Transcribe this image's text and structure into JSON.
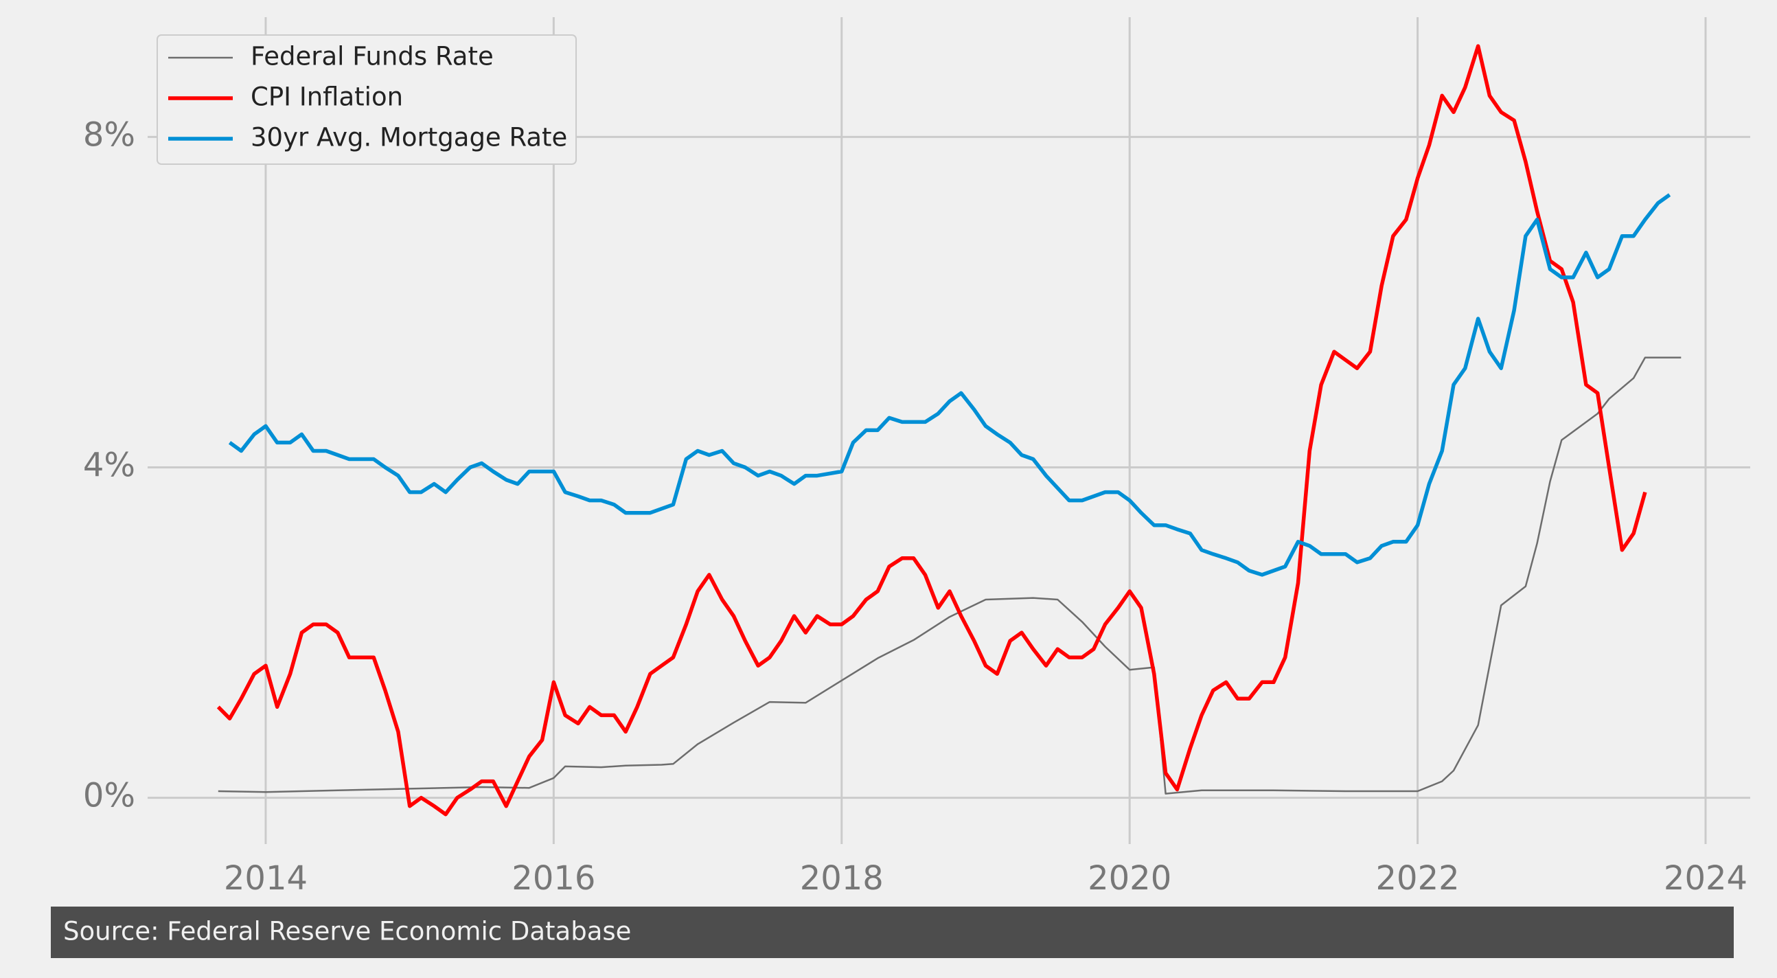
{
  "chart_data": {
    "type": "line",
    "caption": "Source: Federal Reserve Economic Database",
    "xlim": [
      2013.18,
      2024.31
    ],
    "xticks": [
      2014,
      2016,
      2018,
      2020,
      2022,
      2024
    ],
    "ylim": [
      -0.56,
      9.45
    ],
    "yticks": [
      {
        "value": 0,
        "label": "0%"
      },
      {
        "value": 4,
        "label": "4%"
      },
      {
        "value": 8,
        "label": "8%"
      }
    ],
    "grid": true,
    "legend": "upper left",
    "series": [
      {
        "name": "Federal Funds Rate",
        "color": "#6d6d6d",
        "x": [
          2013.67,
          2014.0,
          2014.5,
          2015.0,
          2015.5,
          2015.83,
          2016.0,
          2016.08,
          2016.33,
          2016.5,
          2016.75,
          2016.83,
          2017.0,
          2017.25,
          2017.5,
          2017.75,
          2018.0,
          2018.25,
          2018.5,
          2018.75,
          2019.0,
          2019.33,
          2019.5,
          2019.67,
          2019.83,
          2020.0,
          2020.17,
          2020.25,
          2020.5,
          2021.0,
          2021.5,
          2022.0,
          2022.17,
          2022.25,
          2022.42,
          2022.58,
          2022.75,
          2022.83,
          2022.92,
          2023.0,
          2023.25,
          2023.33,
          2023.5,
          2023.58,
          2023.83
        ],
        "values": [
          0.08,
          0.07,
          0.09,
          0.11,
          0.13,
          0.12,
          0.24,
          0.38,
          0.37,
          0.39,
          0.4,
          0.41,
          0.65,
          0.91,
          1.16,
          1.15,
          1.42,
          1.69,
          1.91,
          2.19,
          2.4,
          2.42,
          2.4,
          2.13,
          1.83,
          1.55,
          1.58,
          0.05,
          0.09,
          0.09,
          0.08,
          0.08,
          0.2,
          0.33,
          0.88,
          2.33,
          2.56,
          3.08,
          3.83,
          4.33,
          4.65,
          4.83,
          5.08,
          5.33,
          5.33
        ]
      },
      {
        "name": "CPI Inflation",
        "color": "#ff0000",
        "x": [
          2013.67,
          2013.75,
          2013.83,
          2013.92,
          2014.0,
          2014.08,
          2014.17,
          2014.25,
          2014.33,
          2014.42,
          2014.5,
          2014.58,
          2014.67,
          2014.75,
          2014.83,
          2014.92,
          2015.0,
          2015.08,
          2015.17,
          2015.25,
          2015.33,
          2015.42,
          2015.5,
          2015.58,
          2015.67,
          2015.75,
          2015.83,
          2015.92,
          2016.0,
          2016.08,
          2016.17,
          2016.25,
          2016.33,
          2016.42,
          2016.5,
          2016.58,
          2016.67,
          2016.75,
          2016.83,
          2016.92,
          2017.0,
          2017.08,
          2017.17,
          2017.25,
          2017.33,
          2017.42,
          2017.5,
          2017.58,
          2017.67,
          2017.75,
          2017.83,
          2017.92,
          2018.0,
          2018.08,
          2018.17,
          2018.25,
          2018.33,
          2018.42,
          2018.5,
          2018.58,
          2018.67,
          2018.75,
          2018.83,
          2018.92,
          2019.0,
          2019.08,
          2019.17,
          2019.25,
          2019.33,
          2019.42,
          2019.5,
          2019.58,
          2019.67,
          2019.75,
          2019.83,
          2019.92,
          2020.0,
          2020.08,
          2020.17,
          2020.25,
          2020.33,
          2020.42,
          2020.5,
          2020.58,
          2020.67,
          2020.75,
          2020.83,
          2020.92,
          2021.0,
          2021.08,
          2021.17,
          2021.25,
          2021.33,
          2021.42,
          2021.5,
          2021.58,
          2021.67,
          2021.75,
          2021.83,
          2021.92,
          2022.0,
          2022.08,
          2022.17,
          2022.25,
          2022.33,
          2022.42,
          2022.5,
          2022.58,
          2022.67,
          2022.75,
          2022.83,
          2022.92,
          2023.0,
          2023.08,
          2023.17,
          2023.25,
          2023.33,
          2023.42,
          2023.5,
          2023.58
        ],
        "values": [
          1.1,
          0.96,
          1.2,
          1.5,
          1.6,
          1.1,
          1.5,
          2.0,
          2.1,
          2.1,
          2.0,
          1.7,
          1.7,
          1.7,
          1.3,
          0.8,
          -0.1,
          0.0,
          -0.1,
          -0.2,
          0.0,
          0.1,
          0.2,
          0.2,
          -0.1,
          0.2,
          0.5,
          0.7,
          1.4,
          1.0,
          0.9,
          1.1,
          1.0,
          1.0,
          0.8,
          1.1,
          1.5,
          1.6,
          1.7,
          2.1,
          2.5,
          2.7,
          2.4,
          2.2,
          1.9,
          1.6,
          1.7,
          1.9,
          2.2,
          2.0,
          2.2,
          2.1,
          2.1,
          2.2,
          2.4,
          2.5,
          2.8,
          2.9,
          2.9,
          2.7,
          2.3,
          2.5,
          2.2,
          1.9,
          1.6,
          1.5,
          1.9,
          2.0,
          1.8,
          1.6,
          1.8,
          1.7,
          1.7,
          1.8,
          2.1,
          2.3,
          2.5,
          2.3,
          1.5,
          0.3,
          0.1,
          0.6,
          1.0,
          1.3,
          1.4,
          1.2,
          1.2,
          1.4,
          1.4,
          1.7,
          2.6,
          4.2,
          5.0,
          5.4,
          5.3,
          5.2,
          5.4,
          6.2,
          6.8,
          7.0,
          7.5,
          7.9,
          8.5,
          8.3,
          8.6,
          9.1,
          8.5,
          8.3,
          8.2,
          7.7,
          7.1,
          6.5,
          6.4,
          6.0,
          5.0,
          4.9,
          4.0,
          3.0,
          3.2,
          3.7
        ]
      },
      {
        "name": "30yr Avg. Mortgage Rate",
        "color": "#008fd5",
        "x": [
          2013.75,
          2013.83,
          2013.92,
          2014.0,
          2014.08,
          2014.17,
          2014.25,
          2014.33,
          2014.42,
          2014.5,
          2014.58,
          2014.67,
          2014.75,
          2014.83,
          2014.92,
          2015.0,
          2015.08,
          2015.17,
          2015.25,
          2015.33,
          2015.42,
          2015.5,
          2015.58,
          2015.67,
          2015.75,
          2015.83,
          2015.92,
          2016.0,
          2016.08,
          2016.17,
          2016.25,
          2016.33,
          2016.42,
          2016.5,
          2016.58,
          2016.67,
          2016.75,
          2016.83,
          2016.92,
          2017.0,
          2017.08,
          2017.17,
          2017.25,
          2017.33,
          2017.42,
          2017.5,
          2017.58,
          2017.67,
          2017.75,
          2017.83,
          2018.0,
          2018.08,
          2018.17,
          2018.25,
          2018.33,
          2018.42,
          2018.5,
          2018.58,
          2018.67,
          2018.75,
          2018.83,
          2018.92,
          2019.0,
          2019.08,
          2019.17,
          2019.25,
          2019.33,
          2019.42,
          2019.5,
          2019.58,
          2019.67,
          2019.75,
          2019.83,
          2019.92,
          2020.0,
          2020.08,
          2020.17,
          2020.25,
          2020.33,
          2020.42,
          2020.5,
          2020.58,
          2020.67,
          2020.75,
          2020.83,
          2020.92,
          2021.0,
          2021.08,
          2021.17,
          2021.25,
          2021.33,
          2021.42,
          2021.5,
          2021.58,
          2021.67,
          2021.75,
          2021.83,
          2021.92,
          2022.0,
          2022.08,
          2022.17,
          2022.25,
          2022.33,
          2022.42,
          2022.5,
          2022.58,
          2022.67,
          2022.75,
          2022.83,
          2022.92,
          2023.0,
          2023.08,
          2023.17,
          2023.25,
          2023.33,
          2023.42,
          2023.5,
          2023.58,
          2023.67,
          2023.75
        ],
        "values": [
          4.3,
          4.2,
          4.4,
          4.5,
          4.3,
          4.3,
          4.4,
          4.2,
          4.2,
          4.15,
          4.1,
          4.1,
          4.1,
          4.0,
          3.9,
          3.7,
          3.7,
          3.8,
          3.7,
          3.85,
          4.0,
          4.05,
          3.95,
          3.85,
          3.8,
          3.95,
          3.95,
          3.95,
          3.7,
          3.65,
          3.6,
          3.6,
          3.55,
          3.45,
          3.45,
          3.45,
          3.5,
          3.55,
          4.1,
          4.2,
          4.15,
          4.2,
          4.05,
          4.0,
          3.9,
          3.95,
          3.9,
          3.8,
          3.9,
          3.9,
          3.95,
          4.3,
          4.45,
          4.45,
          4.6,
          4.55,
          4.55,
          4.55,
          4.65,
          4.8,
          4.9,
          4.7,
          4.5,
          4.4,
          4.3,
          4.15,
          4.1,
          3.9,
          3.75,
          3.6,
          3.6,
          3.65,
          3.7,
          3.7,
          3.6,
          3.45,
          3.3,
          3.3,
          3.25,
          3.2,
          3.0,
          2.95,
          2.9,
          2.85,
          2.75,
          2.7,
          2.75,
          2.8,
          3.1,
          3.05,
          2.95,
          2.95,
          2.95,
          2.85,
          2.9,
          3.05,
          3.1,
          3.1,
          3.3,
          3.8,
          4.2,
          5.0,
          5.2,
          5.8,
          5.4,
          5.2,
          5.9,
          6.8,
          7.0,
          6.4,
          6.3,
          6.3,
          6.6,
          6.3,
          6.4,
          6.8,
          6.8,
          7.0,
          7.2,
          7.3
        ]
      }
    ]
  }
}
